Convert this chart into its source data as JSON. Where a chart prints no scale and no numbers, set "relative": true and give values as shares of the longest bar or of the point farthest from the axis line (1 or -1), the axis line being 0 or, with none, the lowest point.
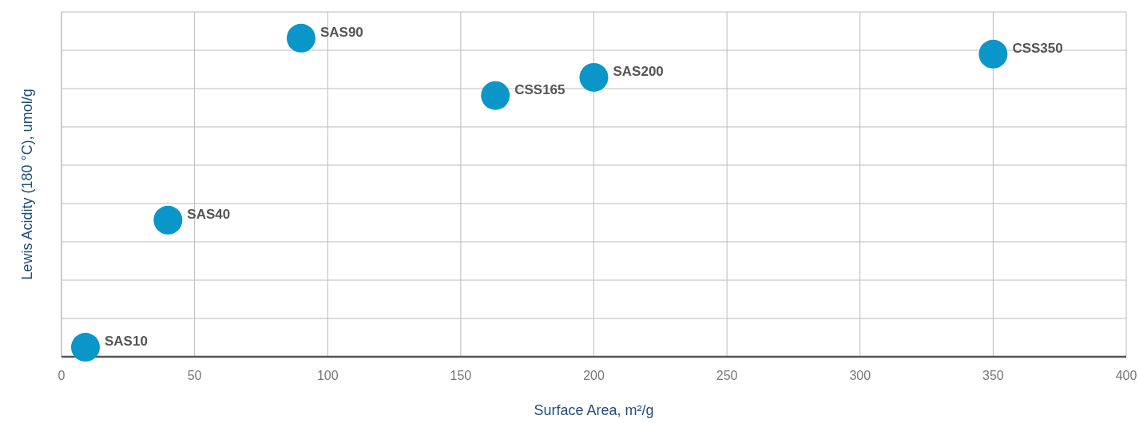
{
  "chart_data": {
    "type": "scatter",
    "xlabel": "Surface Area, m²/g",
    "ylabel": "Lewis Acidity (180 °C), umol/g",
    "relative": true,
    "x": [
      9,
      40,
      90,
      163,
      200,
      350
    ],
    "values": [
      0.03,
      0.429,
      1,
      0.82,
      0.877,
      0.95
    ],
    "color": "#0a96c8",
    "marker": "circle",
    "grid": true,
    "tick_labels": "x",
    "xlim": [
      0,
      400
    ],
    "xticks": [
      0,
      50,
      100,
      150,
      200,
      250,
      300,
      350,
      400
    ],
    "annotations": [
      {
        "text": "SAS10",
        "x": 9,
        "y": 0.03
      },
      {
        "text": "SAS40",
        "x": 40,
        "y": 0.429
      },
      {
        "text": "SAS90",
        "x": 90,
        "y": 1
      },
      {
        "text": "CSS165",
        "x": 163,
        "y": 0.82
      },
      {
        "text": "SAS200",
        "x": 200,
        "y": 0.877
      },
      {
        "text": "CSS350",
        "x": 350,
        "y": 0.95
      }
    ]
  }
}
